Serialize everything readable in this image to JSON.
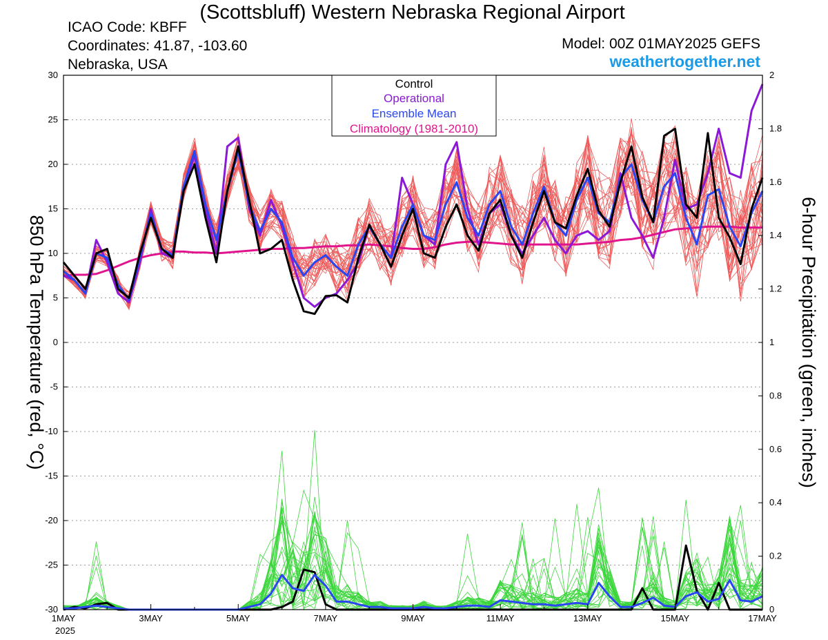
{
  "header": {
    "title": "(Scottsbluff) Western Nebraska Regional Airport",
    "icao": "ICAO Code: KBFF",
    "coordinates": "Coordinates: 41.87, -103.60",
    "region": "Nebraska, USA",
    "model": "Model: 00Z 01MAY2025 GEFS",
    "website": "weathertogether.net"
  },
  "colors": {
    "members_temp": "#ee5a5a",
    "members_precip": "#3dd63d",
    "control": "#000000",
    "operational": "#8a18d6",
    "ensemble_mean": "#2a46f0",
    "climatology": "#e0148c",
    "website": "#1a9be8"
  },
  "chart_data": {
    "type": "line",
    "y_left_label": "850 hPa Temperature (red, °C)",
    "y_right_label": "6-hour Precipitation (green, inches)",
    "x_ticks": [
      "1MAY",
      "3MAY",
      "5MAY",
      "7MAY",
      "9MAY",
      "11MAY",
      "13MAY",
      "15MAY",
      "17MAY"
    ],
    "x_year_label": "2025",
    "x_range_days": [
      0,
      16
    ],
    "step_hours": 6,
    "y_left_range": [
      -30,
      30
    ],
    "y_left_ticks": [
      30,
      25,
      20,
      15,
      10,
      5,
      0,
      -5,
      -10,
      -15,
      -20,
      -25,
      -30
    ],
    "y_right_range": [
      0,
      2
    ],
    "y_right_ticks": [
      "2",
      "1.8",
      "1.6",
      "1.4",
      "1.2",
      "1",
      "0.8",
      "0.6",
      "0.4",
      "0.2",
      "0"
    ],
    "grid": "dotted horizontal",
    "legend": {
      "position": "top-center",
      "entries": [
        "Control",
        "Operational",
        "Ensemble Mean",
        "Climatology (1981-2010)"
      ]
    },
    "series": [
      {
        "name": "Control",
        "axis": "temperature",
        "values": [
          9,
          7.5,
          6,
          10,
          10.5,
          6,
          5,
          10,
          14,
          10.5,
          9.5,
          17,
          20,
          14,
          9,
          17,
          22,
          16,
          10,
          10.5,
          11.5,
          7,
          3.5,
          3.2,
          5.2,
          5.3,
          4.5,
          9.5,
          13.2,
          11,
          8.5,
          12,
          15,
          10,
          9.5,
          13,
          15.5,
          12,
          10.3,
          14.5,
          16,
          12,
          9.5,
          13.5,
          17,
          13.5,
          12.8,
          16.5,
          19.5,
          14.8,
          13,
          18,
          22,
          16.3,
          13.5,
          23.2,
          24,
          15.5,
          14,
          23.5,
          14,
          11.8,
          8.8,
          15,
          18.5
        ]
      },
      {
        "name": "Operational",
        "axis": "temperature",
        "values": [
          7.5,
          7,
          5.5,
          11.5,
          9,
          5.5,
          4.5,
          9,
          15,
          10,
          9.5,
          17,
          21,
          15,
          10,
          22,
          23,
          15,
          12,
          16,
          13,
          9,
          5,
          4,
          5,
          5.5,
          7,
          9,
          13.2,
          11,
          9.5,
          18.5,
          15.5,
          12,
          11,
          20,
          22.5,
          15,
          11,
          14.5,
          15.5,
          12,
          10,
          12,
          14,
          11.5,
          10,
          12,
          12.5,
          11.5,
          12.5,
          19,
          14,
          12,
          9.5,
          14,
          20.5,
          15,
          15.5,
          19,
          24,
          19,
          18.5,
          26,
          29
        ]
      },
      {
        "name": "Ensemble Mean",
        "axis": "temperature",
        "values": [
          8,
          7,
          5.5,
          10,
          9.5,
          6.5,
          4.8,
          9.5,
          14.5,
          10.5,
          9.8,
          17.5,
          21.5,
          15.5,
          11.5,
          17,
          21.5,
          15.5,
          12.5,
          15,
          13.5,
          9.5,
          7.5,
          9,
          9.8,
          8.5,
          7.5,
          11,
          13,
          11,
          9.5,
          13,
          15.5,
          12,
          11.5,
          15.5,
          18,
          14,
          12,
          15.5,
          17,
          13,
          11,
          14.5,
          17.5,
          13.5,
          12,
          16,
          18.5,
          14.5,
          13.5,
          18.5,
          20,
          16,
          13.5,
          17.5,
          19,
          14,
          11,
          16.5,
          17.2,
          13,
          10.8,
          14.5,
          17
        ]
      },
      {
        "name": "Climatology (1981-2010)",
        "axis": "temperature",
        "values": [
          7.5,
          7.6,
          7.6,
          7.7,
          8.1,
          8.6,
          9.1,
          9.5,
          9.8,
          10,
          10.2,
          10.2,
          10.1,
          10.1,
          10,
          10.1,
          10.2,
          10.3,
          10.4,
          10.5,
          10.5,
          10.6,
          10.6,
          10.7,
          10.8,
          10.8,
          10.9,
          10.9,
          11,
          10.9,
          10.8,
          10.6,
          10.5,
          10.5,
          10.7,
          11,
          11.2,
          11.3,
          11.3,
          11.2,
          11.1,
          11,
          11,
          11,
          11,
          11,
          11,
          11,
          11.1,
          11.2,
          11.3,
          11.5,
          11.6,
          11.8,
          12.1,
          12.4,
          12.7,
          12.8,
          12.9,
          13,
          13,
          13,
          12.9,
          12.9,
          12.9
        ]
      },
      {
        "name": "Control",
        "axis": "precipitation",
        "values": [
          0,
          0.01,
          0.005,
          0.02,
          0.025,
          0,
          0,
          0,
          0,
          0,
          0,
          0,
          0,
          0,
          0,
          0,
          0,
          0,
          0,
          0,
          0.01,
          0.03,
          0.15,
          0.14,
          0.02,
          0,
          0,
          0,
          0,
          0,
          0,
          0,
          0,
          0,
          0,
          0,
          0,
          0,
          0,
          0,
          0,
          0,
          0,
          0,
          0,
          0,
          0,
          0,
          0,
          0,
          0,
          0,
          0,
          0.08,
          0,
          0,
          0,
          0.24,
          0.07,
          0,
          0.1,
          0,
          0,
          0,
          0
        ]
      },
      {
        "name": "Ensemble Mean",
        "axis": "precipitation",
        "values": [
          0.005,
          0.005,
          0.01,
          0.015,
          0.01,
          0.005,
          0,
          0,
          0,
          0,
          0,
          0,
          0,
          0,
          0,
          0,
          0,
          0.01,
          0.02,
          0.06,
          0.13,
          0.08,
          0.07,
          0.13,
          0.09,
          0.03,
          0.03,
          0.02,
          0.01,
          0.01,
          0.005,
          0.005,
          0.005,
          0.01,
          0.005,
          0.005,
          0.01,
          0.015,
          0.015,
          0.01,
          0.035,
          0.03,
          0.025,
          0.02,
          0.02,
          0.015,
          0.02,
          0.025,
          0.02,
          0.1,
          0.05,
          0.01,
          0.01,
          0.025,
          0.045,
          0.015,
          0.01,
          0.05,
          0.065,
          0.03,
          0.04,
          0.11,
          0.035,
          0.03,
          0.05
        ]
      }
    ]
  }
}
